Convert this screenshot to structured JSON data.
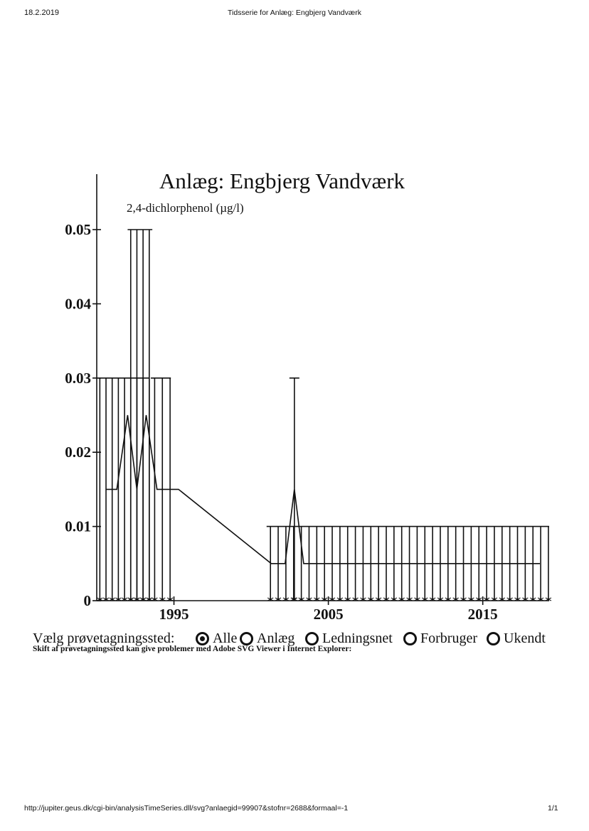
{
  "page_header": {
    "date": "18.2.2019",
    "title": "Tidsserie for Anlæg: Engbjerg Vandværk"
  },
  "page_footer": {
    "url": "http://jupiter.geus.dk/cgi-bin/analysisTimeSeries.dll/svg?anlaegid=99907&stofnr=2688&formaal=-1",
    "page": "1/1"
  },
  "chart_data": {
    "type": "line",
    "title": "Anlæg: Engbjerg Vandværk",
    "subtitle": "2,4-dichlorphenol (µg/l)",
    "ylim": [
      0,
      0.05
    ],
    "yticks": [
      "0",
      "0.01",
      "0.02",
      "0.03",
      "0.04",
      "0.05"
    ],
    "xlim": [
      1990.0,
      2019.3
    ],
    "xticks": [
      "1995",
      "2005",
      "2015"
    ],
    "grid": false,
    "series": [
      {
        "x": [
          1990.6,
          1991.3,
          1992.0,
          1992.6,
          1993.2,
          1993.9,
          1994.5,
          1995.3,
          2001.3,
          2002.2,
          2002.8,
          2003.4,
          2004.3,
          2005.1,
          2005.9,
          2006.7,
          2007.5,
          2008.3,
          2009.1,
          2009.9,
          2010.7,
          2011.5,
          2012.3,
          2013.1,
          2013.9,
          2014.7,
          2015.5,
          2016.3,
          2017.1,
          2017.9,
          2018.7
        ],
        "y": [
          0.015,
          0.015,
          0.025,
          0.015,
          0.025,
          0.015,
          0.015,
          0.015,
          0.005,
          0.005,
          0.015,
          0.005,
          0.005,
          0.005,
          0.005,
          0.005,
          0.005,
          0.005,
          0.005,
          0.005,
          0.005,
          0.005,
          0.005,
          0.005,
          0.005,
          0.005,
          0.005,
          0.005,
          0.005,
          0.005,
          0.005
        ]
      }
    ],
    "detection_limit_bars": [
      {
        "x_start": 1990.0,
        "x_end": 1993.4,
        "y": 0.03,
        "step": 0.4
      },
      {
        "x_start": 1992.0,
        "x_end": 1993.6,
        "y": 0.05,
        "step": 0.4
      },
      {
        "x_start": 1993.5,
        "x_end": 1994.8,
        "y": 0.03,
        "step": 0.5
      },
      {
        "x_start": 2001.0,
        "x_end": 2019.3,
        "y": 0.01,
        "step": 0.5
      },
      {
        "x_start": 2002.8,
        "x_end": 2002.8,
        "y": 0.03,
        "step": 1
      }
    ]
  },
  "selector": {
    "label": "Vælg prøvetagningssted:",
    "options": [
      {
        "label": "Alle",
        "checked": true
      },
      {
        "label": "Anlæg",
        "checked": false
      },
      {
        "label": "Ledningsnet",
        "checked": false
      },
      {
        "label": "Forbruger",
        "checked": false
      },
      {
        "label": "Ukendt",
        "checked": false
      }
    ],
    "note": "Skift af prøvetagningssted kan give problemer med Adobe SVG Viewer i Internet Explorer:"
  }
}
